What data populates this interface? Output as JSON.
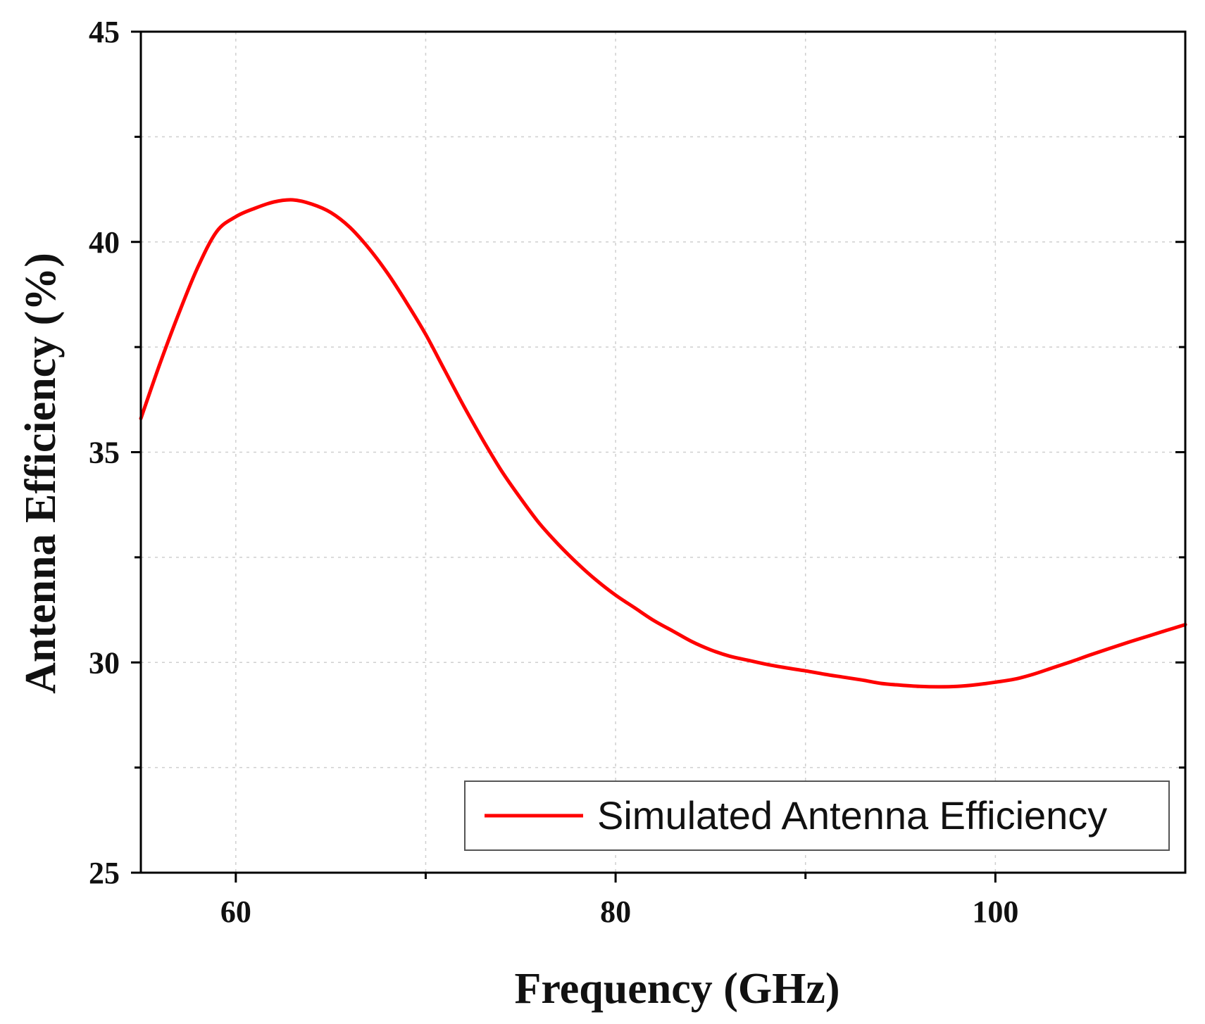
{
  "chart_data": {
    "type": "line",
    "title": "",
    "xlabel": "Frequency (GHz)",
    "ylabel": "Antenna Efficiency (%)",
    "xlim": [
      55,
      110
    ],
    "ylim": [
      25,
      45
    ],
    "x_ticks": [
      60,
      80,
      100
    ],
    "x_minor_ticks": [
      70,
      90
    ],
    "y_ticks": [
      25,
      30,
      35,
      40,
      45
    ],
    "y_minor_ticks": [
      27.5,
      32.5,
      37.5,
      42.5
    ],
    "grid": true,
    "legend_position": "bottom-right",
    "series": [
      {
        "name": "Simulated Antenna Efficiency",
        "color": "#ff0000",
        "x": [
          55,
          56,
          57,
          58,
          59,
          60,
          61,
          62,
          63,
          64,
          65,
          66,
          67,
          68,
          69,
          70,
          71,
          72,
          73,
          74,
          75,
          76,
          77,
          78,
          79,
          80,
          81,
          82,
          83,
          84,
          85,
          86,
          87,
          88,
          89,
          90,
          91,
          92,
          93,
          94,
          95,
          96,
          97,
          98,
          99,
          100,
          101,
          102,
          103,
          104,
          105,
          106,
          107,
          108,
          109,
          110
        ],
        "y": [
          35.8,
          37.1,
          38.3,
          39.4,
          40.25,
          40.6,
          40.8,
          40.95,
          41.0,
          40.9,
          40.7,
          40.35,
          39.85,
          39.25,
          38.55,
          37.8,
          36.95,
          36.1,
          35.3,
          34.55,
          33.9,
          33.3,
          32.8,
          32.35,
          31.95,
          31.6,
          31.3,
          31.0,
          30.75,
          30.5,
          30.3,
          30.15,
          30.05,
          29.95,
          29.87,
          29.8,
          29.72,
          29.65,
          29.58,
          29.5,
          29.46,
          29.43,
          29.42,
          29.43,
          29.47,
          29.53,
          29.6,
          29.72,
          29.87,
          30.02,
          30.18,
          30.33,
          30.48,
          30.62,
          30.76,
          30.9
        ]
      }
    ]
  }
}
